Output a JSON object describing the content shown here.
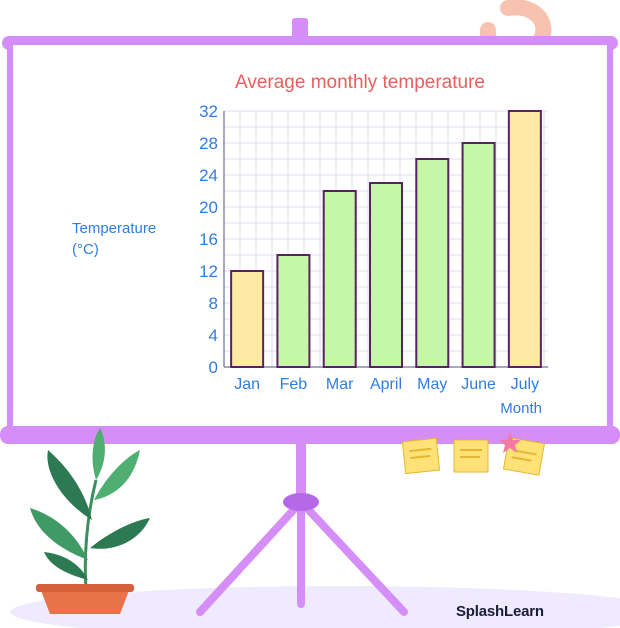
{
  "chart_data": {
    "type": "bar",
    "title": "Average monthly temperature",
    "xlabel": "Month",
    "ylabel": "Temperature (°C)",
    "ylabel_lines": [
      "Temperature",
      "(°C)"
    ],
    "categories": [
      "Jan",
      "Feb",
      "Mar",
      "April",
      "May",
      "June",
      "July"
    ],
    "values": [
      12,
      14,
      22,
      23,
      26,
      28,
      32
    ],
    "ylim": [
      0,
      32
    ],
    "yticks": [
      0,
      4,
      8,
      12,
      16,
      20,
      24,
      28,
      32
    ],
    "grid": true,
    "bar_colors": [
      "#fde9a3",
      "#c5f7a8",
      "#c5f7a8",
      "#c5f7a8",
      "#c5f7a8",
      "#c5f7a8",
      "#fde9a3"
    ]
  },
  "colors": {
    "title": "#e85f5c",
    "axis_text": "#2f7de1",
    "frame": "#d58ef7",
    "bar_stroke": "#5b1f63"
  },
  "brand": "SplashLearn"
}
